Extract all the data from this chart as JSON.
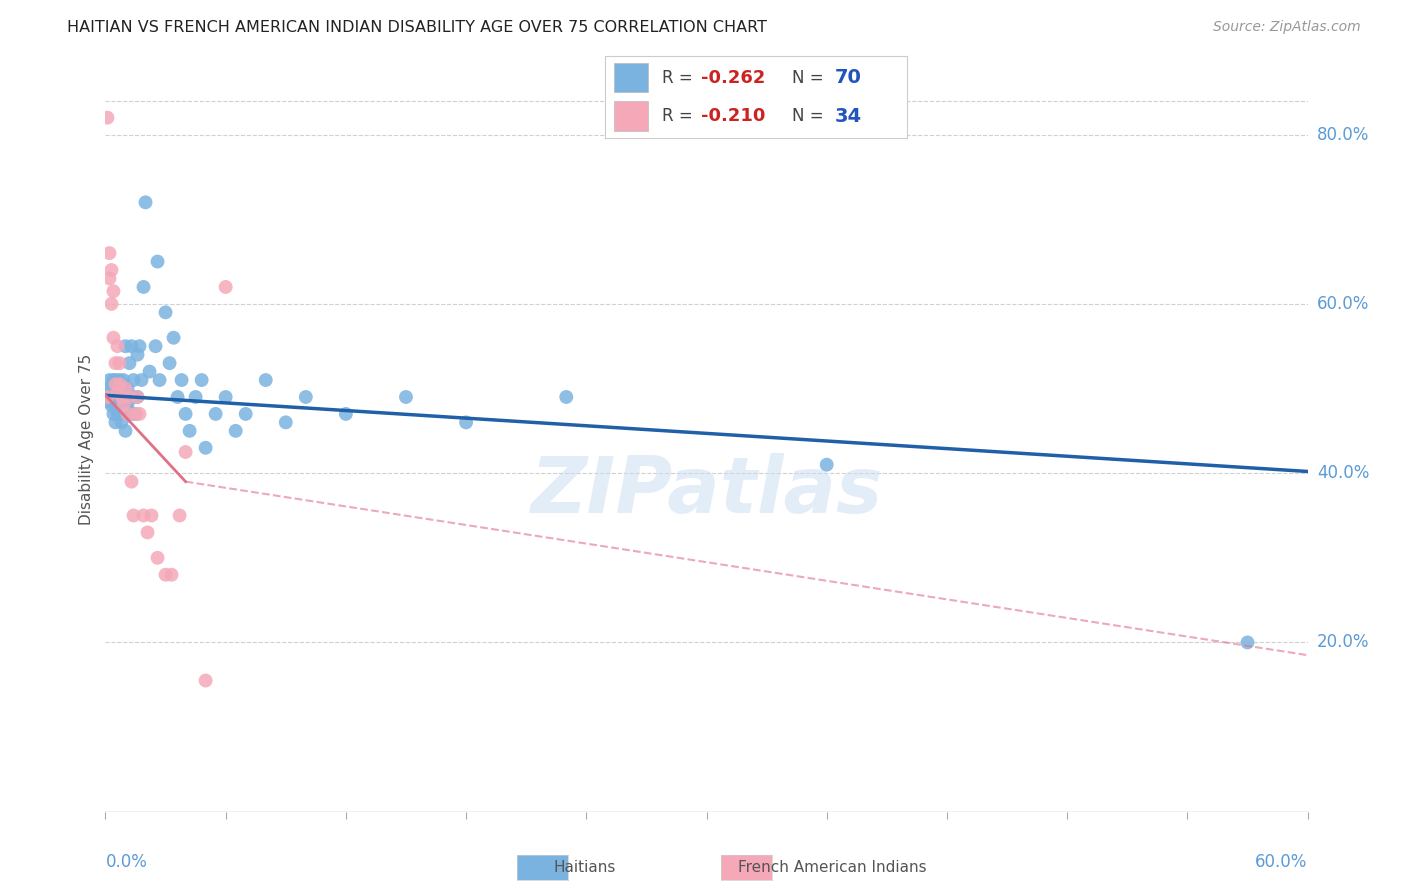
{
  "title": "HAITIAN VS FRENCH AMERICAN INDIAN DISABILITY AGE OVER 75 CORRELATION CHART",
  "source": "Source: ZipAtlas.com",
  "ylabel": "Disability Age Over 75",
  "xmin": 0.0,
  "xmax": 0.6,
  "ymin": 0.0,
  "ymax": 0.88,
  "yticks": [
    0.2,
    0.4,
    0.6,
    0.8
  ],
  "ytick_labels": [
    "20.0%",
    "40.0%",
    "60.0%",
    "80.0%"
  ],
  "haitian_color": "#7ab3e0",
  "french_color": "#f4a8b8",
  "haitian_line_color": "#2060a8",
  "french_line_color": "#e07088",
  "watermark": "ZIPatlas",
  "legend_r_haitian": "-0.262",
  "legend_n_haitian": "70",
  "legend_r_french": "-0.210",
  "legend_n_french": "34",
  "haitian_points_x": [
    0.001,
    0.001,
    0.002,
    0.002,
    0.003,
    0.003,
    0.004,
    0.004,
    0.004,
    0.005,
    0.005,
    0.005,
    0.005,
    0.006,
    0.006,
    0.006,
    0.006,
    0.007,
    0.007,
    0.007,
    0.008,
    0.008,
    0.008,
    0.009,
    0.009,
    0.01,
    0.01,
    0.01,
    0.011,
    0.011,
    0.012,
    0.012,
    0.013,
    0.013,
    0.014,
    0.015,
    0.015,
    0.016,
    0.016,
    0.017,
    0.018,
    0.019,
    0.02,
    0.022,
    0.025,
    0.026,
    0.027,
    0.03,
    0.032,
    0.034,
    0.036,
    0.038,
    0.04,
    0.042,
    0.045,
    0.048,
    0.05,
    0.055,
    0.06,
    0.065,
    0.07,
    0.08,
    0.09,
    0.1,
    0.12,
    0.15,
    0.18,
    0.23,
    0.36,
    0.57
  ],
  "haitian_points_y": [
    0.49,
    0.485,
    0.5,
    0.51,
    0.48,
    0.5,
    0.49,
    0.47,
    0.51,
    0.5,
    0.48,
    0.46,
    0.51,
    0.5,
    0.48,
    0.49,
    0.47,
    0.51,
    0.49,
    0.47,
    0.5,
    0.48,
    0.46,
    0.49,
    0.51,
    0.55,
    0.48,
    0.45,
    0.5,
    0.48,
    0.53,
    0.49,
    0.55,
    0.47,
    0.51,
    0.49,
    0.47,
    0.54,
    0.49,
    0.55,
    0.51,
    0.62,
    0.72,
    0.52,
    0.55,
    0.65,
    0.51,
    0.59,
    0.53,
    0.56,
    0.49,
    0.51,
    0.47,
    0.45,
    0.49,
    0.51,
    0.43,
    0.47,
    0.49,
    0.45,
    0.47,
    0.51,
    0.46,
    0.49,
    0.47,
    0.49,
    0.46,
    0.49,
    0.41,
    0.2
  ],
  "french_points_x": [
    0.001,
    0.001,
    0.002,
    0.002,
    0.003,
    0.003,
    0.004,
    0.004,
    0.005,
    0.005,
    0.006,
    0.006,
    0.007,
    0.007,
    0.008,
    0.009,
    0.01,
    0.011,
    0.012,
    0.013,
    0.014,
    0.015,
    0.016,
    0.017,
    0.019,
    0.021,
    0.023,
    0.026,
    0.03,
    0.033,
    0.037,
    0.04,
    0.05,
    0.06
  ],
  "french_points_y": [
    0.82,
    0.49,
    0.66,
    0.63,
    0.64,
    0.6,
    0.56,
    0.615,
    0.53,
    0.505,
    0.55,
    0.495,
    0.53,
    0.505,
    0.49,
    0.48,
    0.5,
    0.47,
    0.49,
    0.39,
    0.35,
    0.47,
    0.49,
    0.47,
    0.35,
    0.33,
    0.35,
    0.3,
    0.28,
    0.28,
    0.35,
    0.425,
    0.155,
    0.62
  ],
  "haitian_trend_x": [
    0.0,
    0.6
  ],
  "haitian_trend_y": [
    0.492,
    0.402
  ],
  "french_solid_trend_x": [
    0.0,
    0.04
  ],
  "french_solid_trend_y": [
    0.492,
    0.39
  ],
  "french_dashed_trend_x": [
    0.04,
    0.6
  ],
  "french_dashed_trend_y": [
    0.39,
    0.185
  ]
}
